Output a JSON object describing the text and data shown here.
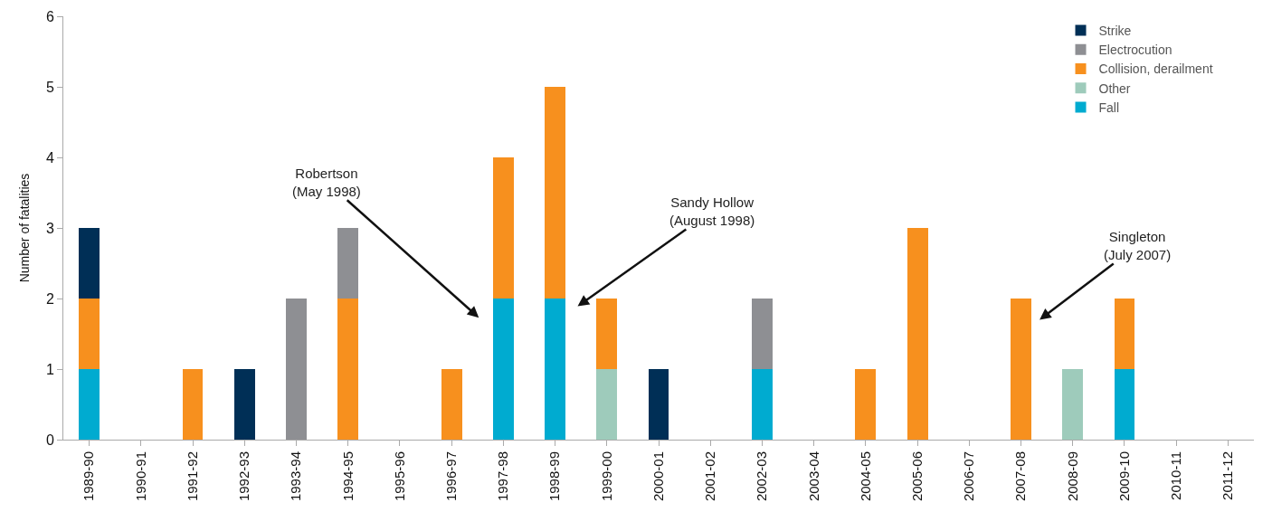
{
  "chart_data": {
    "type": "bar",
    "stacked": true,
    "ylabel": "Number of fatalities",
    "categories": [
      "1989-90",
      "1990-91",
      "1991-92",
      "1992-93",
      "1993-94",
      "1994-95",
      "1995-96",
      "1996-97",
      "1997-98",
      "1998-99",
      "1999-00",
      "2000-01",
      "2001-02",
      "2002-03",
      "2003-04",
      "2004-05",
      "2005-06",
      "2006-07",
      "2007-08",
      "2008-09",
      "2009-10",
      "2010-11",
      "2011-12"
    ],
    "series": [
      {
        "name": "Fall",
        "color": "#00abd0",
        "values": [
          1,
          0,
          0,
          0,
          0,
          0,
          0,
          0,
          2,
          2,
          0,
          0,
          0,
          1,
          0,
          0,
          0,
          0,
          0,
          0,
          1,
          0,
          0
        ]
      },
      {
        "name": "Other",
        "color": "#9ecbbb",
        "values": [
          0,
          0,
          0,
          0,
          0,
          0,
          0,
          0,
          0,
          0,
          1,
          0,
          0,
          0,
          0,
          0,
          0,
          0,
          0,
          1,
          0,
          0,
          0
        ]
      },
      {
        "name": "Collision, derailment",
        "color": "#f7901e",
        "values": [
          1,
          0,
          1,
          0,
          0,
          2,
          0,
          1,
          2,
          3,
          1,
          0,
          0,
          0,
          0,
          1,
          3,
          0,
          2,
          0,
          1,
          0,
          0
        ]
      },
      {
        "name": "Electrocution",
        "color": "#8e8f93",
        "values": [
          0,
          0,
          0,
          0,
          2,
          1,
          0,
          0,
          0,
          0,
          0,
          0,
          0,
          1,
          0,
          0,
          0,
          0,
          0,
          0,
          0,
          0,
          0
        ]
      },
      {
        "name": "Strike",
        "color": "#002f56",
        "values": [
          1,
          0,
          0,
          1,
          0,
          0,
          0,
          0,
          0,
          0,
          0,
          1,
          0,
          0,
          0,
          0,
          0,
          0,
          0,
          0,
          0,
          0,
          0
        ]
      }
    ],
    "ylim": [
      0,
      6
    ],
    "yticks": [
      0,
      1,
      2,
      3,
      4,
      5,
      6
    ],
    "grid": false,
    "legend": "top right",
    "annotations": [
      "Robertson\n(May 1998)",
      "Sandy Hollow\n(August 1998)",
      "Singleton\n(July 2007)"
    ]
  }
}
